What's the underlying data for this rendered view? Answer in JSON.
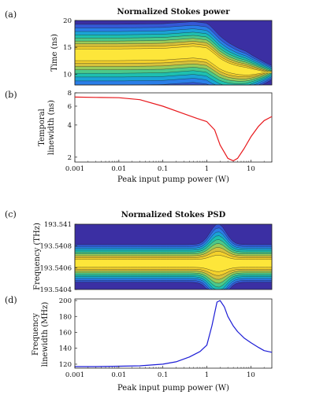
{
  "chart_data": [
    {
      "panel": "(a)",
      "type": "heatmap",
      "title": "Normalized Stokes power",
      "xlabel": "",
      "ylabel": "Time (ns)",
      "x_scale": "log",
      "xlim": [
        0.001,
        30
      ],
      "ylim": [
        8,
        20
      ],
      "y_ticks": [
        "10",
        "15",
        "20"
      ],
      "colormap": [
        "#3b2fa3",
        "#3458d6",
        "#2a7ee8",
        "#1ba3d6",
        "#1ebfb0",
        "#4cc98a",
        "#98cb5a",
        "#d7c13c",
        "#f4d12c",
        "#fde63a"
      ],
      "ridge": {
        "x": [
          0.001,
          0.01,
          0.1,
          0.5,
          1.0,
          1.5,
          2.0,
          3.0,
          5.0,
          10.0,
          20.0,
          30.0
        ],
        "center_ns": [
          13.7,
          13.7,
          13.8,
          14.2,
          13.9,
          12.8,
          12.0,
          11.3,
          10.8,
          10.5,
          10.4,
          10.4
        ]
      }
    },
    {
      "panel": "(b)",
      "type": "line",
      "xlabel": "Peak input pump power (W)",
      "ylabel": "Temporal linewidth (ns)",
      "x_scale": "log",
      "y_scale": "log",
      "xlim": [
        0.001,
        30
      ],
      "ylim": [
        1.8,
        8
      ],
      "x_ticks": [
        "0.001",
        "0.01",
        "0.1",
        "1",
        "10"
      ],
      "y_ticks": [
        "2",
        "4",
        "6",
        "8"
      ],
      "series": [
        {
          "color": "#e8181c",
          "x": [
            0.001,
            0.003,
            0.01,
            0.03,
            0.1,
            0.3,
            0.6,
            1.0,
            1.5,
            2.0,
            3.0,
            4.0,
            5.0,
            7.0,
            10.0,
            15.0,
            20.0,
            30.0
          ],
          "values": [
            7.3,
            7.25,
            7.2,
            6.9,
            6.0,
            5.1,
            4.6,
            4.3,
            3.6,
            2.6,
            1.95,
            1.85,
            1.95,
            2.4,
            3.1,
            3.9,
            4.4,
            4.8
          ]
        }
      ]
    },
    {
      "panel": "(c)",
      "type": "heatmap",
      "title": "Normalized Stokes PSD",
      "xlabel": "",
      "ylabel": "Frequency (THz)",
      "x_scale": "log",
      "xlim": [
        0.001,
        30
      ],
      "ylim": [
        193.5404,
        193.541
      ],
      "y_ticks": [
        "193.5404",
        "193.5406",
        "193.5408",
        "193.541"
      ],
      "colormap": [
        "#3b2fa3",
        "#3458d6",
        "#2a7ee8",
        "#1ba3d6",
        "#1ebfb0",
        "#4cc98a",
        "#98cb5a",
        "#d7c13c",
        "#f4d12c",
        "#fde63a"
      ]
    },
    {
      "panel": "(d)",
      "type": "line",
      "xlabel": "Peak input pump power (W)",
      "ylabel": "Frequency linewidth (MHz)",
      "x_scale": "log",
      "xlim": [
        0.001,
        30
      ],
      "ylim": [
        115,
        202
      ],
      "x_ticks": [
        "0.001",
        "0.01",
        "0.1",
        "1",
        "10"
      ],
      "y_ticks": [
        "120",
        "140",
        "160",
        "180",
        "200"
      ],
      "series": [
        {
          "color": "#1c1cd6",
          "x": [
            0.001,
            0.003,
            0.01,
            0.03,
            0.1,
            0.2,
            0.4,
            0.7,
            1.0,
            1.3,
            1.7,
            2.0,
            2.5,
            3.0,
            4.0,
            5.0,
            7.0,
            10.0,
            15.0,
            20.0,
            30.0
          ],
          "values": [
            117,
            117,
            117.5,
            118,
            120,
            123,
            129,
            136,
            144,
            168,
            198,
            200,
            192,
            180,
            168,
            161,
            153,
            147,
            141,
            137,
            135
          ]
        }
      ]
    }
  ]
}
